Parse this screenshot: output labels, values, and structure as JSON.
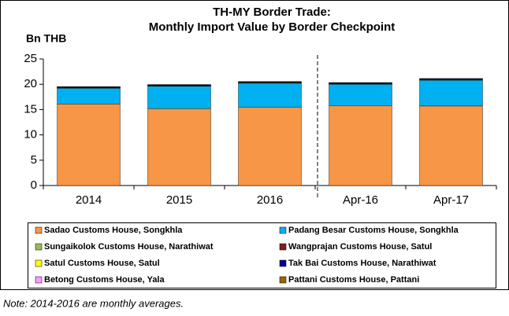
{
  "chart_data": {
    "type": "stacked_bar",
    "title": [
      "TH-MY Border Trade:",
      "Monthly Import Value by Border Checkpoint"
    ],
    "y_label": "Bn THB",
    "categories": [
      "2014",
      "2015",
      "2016",
      "Apr-16",
      "Apr-17"
    ],
    "series": [
      {
        "name": "Sadao Customs House, Songkhla",
        "color": "#f79646",
        "values": [
          16.1,
          15.2,
          15.5,
          15.8,
          15.7
        ]
      },
      {
        "name": "Padang Besar Customs House, Songkhla",
        "color": "#00b0f0",
        "values": [
          3.1,
          4.4,
          4.7,
          4.2,
          5.1
        ]
      },
      {
        "name": "Sungaikolok Customs House, Narathiwat",
        "color": "#9bbb59",
        "values": [
          0.1,
          0.1,
          0.1,
          0.1,
          0.1
        ]
      },
      {
        "name": "Wangprajan Customs House, Satul",
        "color": "#7f1f1f",
        "values": [
          0.05,
          0.05,
          0.05,
          0.05,
          0.05
        ]
      },
      {
        "name": "Satul Customs House, Satul",
        "color": "#ffff00",
        "values": [
          0.02,
          0.02,
          0.02,
          0.02,
          0.02
        ]
      },
      {
        "name": "Tak Bai Customs House, Narathiwat",
        "color": "#000099",
        "values": [
          0.1,
          0.1,
          0.1,
          0.1,
          0.1
        ]
      },
      {
        "name": "Betong Customs House, Yala",
        "color": "#ff99ff",
        "values": [
          0.02,
          0.02,
          0.02,
          0.02,
          0.02
        ]
      },
      {
        "name": "Pattani Customs House, Pattani",
        "color": "#996600",
        "values": [
          0.05,
          0.05,
          0.05,
          0.05,
          0.05
        ]
      }
    ],
    "ylim": [
      0,
      25
    ],
    "yticks": [
      0,
      5,
      10,
      15,
      20,
      25
    ],
    "note": "Note: 2014-2016 are monthly averages."
  }
}
